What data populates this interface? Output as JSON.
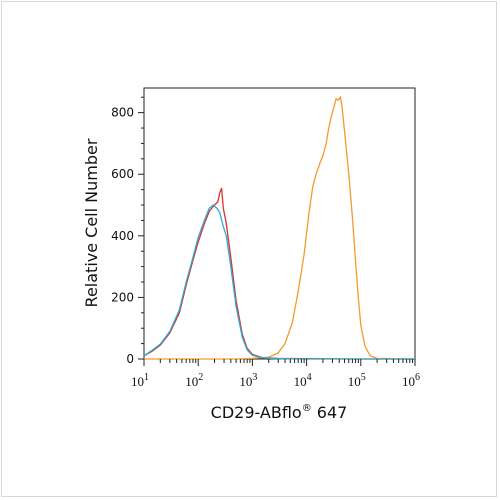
{
  "chart_data": {
    "type": "line",
    "title": "",
    "xlabel_main": "CD29-ABflo",
    "xlabel_reg": "®",
    "xlabel_num": " 647",
    "ylabel": "Relative Cell Number",
    "xscale": "log",
    "xlim": [
      10,
      1000000
    ],
    "ylim": [
      0,
      880
    ],
    "x_ticks": [
      {
        "base": "10",
        "exp": "1"
      },
      {
        "base": "10",
        "exp": "2"
      },
      {
        "base": "10",
        "exp": "3"
      },
      {
        "base": "10",
        "exp": "4"
      },
      {
        "base": "10",
        "exp": "5"
      },
      {
        "base": "10",
        "exp": "6"
      }
    ],
    "y_ticks": [
      "0",
      "200",
      "400",
      "600",
      "800"
    ],
    "y_tick_values": [
      0,
      200,
      400,
      600,
      800
    ],
    "grid": false,
    "legend": "none",
    "series": [
      {
        "color": "#e03030",
        "points": [
          [
            10,
            10
          ],
          [
            14,
            25
          ],
          [
            20,
            45
          ],
          [
            30,
            85
          ],
          [
            45,
            150
          ],
          [
            60,
            240
          ],
          [
            80,
            320
          ],
          [
            100,
            380
          ],
          [
            130,
            440
          ],
          [
            160,
            480
          ],
          [
            200,
            500
          ],
          [
            230,
            510
          ],
          [
            250,
            540
          ],
          [
            270,
            555
          ],
          [
            290,
            490
          ],
          [
            330,
            440
          ],
          [
            400,
            330
          ],
          [
            500,
            190
          ],
          [
            650,
            80
          ],
          [
            800,
            35
          ],
          [
            1000,
            15
          ],
          [
            1500,
            5
          ],
          [
            3000,
            2
          ],
          [
            10000,
            1
          ],
          [
            100000,
            0
          ],
          [
            1000000,
            0
          ]
        ]
      },
      {
        "color": "#f59a2c",
        "points": [
          [
            10,
            0
          ],
          [
            500,
            0
          ],
          [
            1000,
            2
          ],
          [
            2000,
            6
          ],
          [
            3000,
            20
          ],
          [
            4000,
            50
          ],
          [
            5500,
            120
          ],
          [
            7000,
            220
          ],
          [
            9000,
            340
          ],
          [
            11000,
            470
          ],
          [
            13000,
            560
          ],
          [
            15000,
            600
          ],
          [
            18000,
            640
          ],
          [
            20000,
            660
          ],
          [
            23000,
            700
          ],
          [
            25000,
            740
          ],
          [
            28000,
            780
          ],
          [
            32000,
            820
          ],
          [
            35000,
            845
          ],
          [
            38000,
            840
          ],
          [
            42000,
            850
          ],
          [
            45000,
            820
          ],
          [
            50000,
            740
          ],
          [
            60000,
            600
          ],
          [
            70000,
            460
          ],
          [
            80000,
            320
          ],
          [
            90000,
            200
          ],
          [
            100000,
            110
          ],
          [
            120000,
            40
          ],
          [
            150000,
            10
          ],
          [
            200000,
            2
          ],
          [
            1000000,
            0
          ]
        ]
      },
      {
        "color": "#2aaed0",
        "points": [
          [
            10,
            10
          ],
          [
            14,
            28
          ],
          [
            20,
            48
          ],
          [
            30,
            90
          ],
          [
            45,
            160
          ],
          [
            60,
            250
          ],
          [
            80,
            330
          ],
          [
            100,
            395
          ],
          [
            130,
            450
          ],
          [
            160,
            490
          ],
          [
            190,
            500
          ],
          [
            220,
            490
          ],
          [
            250,
            475
          ],
          [
            290,
            430
          ],
          [
            330,
            400
          ],
          [
            400,
            300
          ],
          [
            500,
            170
          ],
          [
            650,
            70
          ],
          [
            800,
            30
          ],
          [
            1000,
            12
          ],
          [
            1500,
            4
          ],
          [
            3000,
            1
          ],
          [
            10000,
            0
          ],
          [
            1000000,
            0
          ]
        ]
      }
    ]
  }
}
